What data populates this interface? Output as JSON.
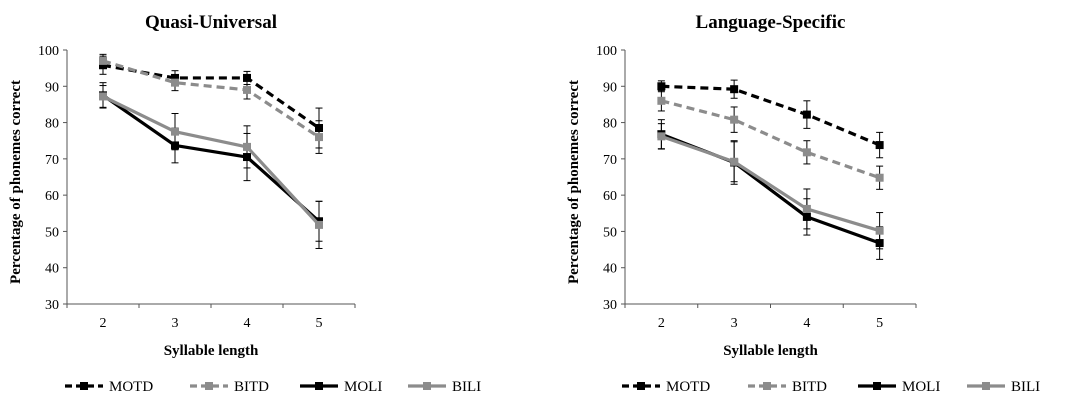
{
  "chart_data": [
    {
      "type": "line",
      "title": "Quasi-Universal",
      "xlabel": "Syllable length",
      "ylabel": "Percentage of phonemes correct",
      "categories": [
        "2",
        "3",
        "4",
        "5"
      ],
      "ylim": [
        30,
        100
      ],
      "yticks": [
        "30",
        "40",
        "50",
        "60",
        "70",
        "80",
        "90",
        "100"
      ],
      "grid": false,
      "legend": "bottom",
      "error_bars": true,
      "series": [
        {
          "name": "MOTD",
          "values": [
            95.8,
            92.3,
            92.3,
            78.5
          ],
          "errors": [
            2.5,
            2.0,
            1.8,
            5.5
          ],
          "color": "#000000",
          "dashed": true
        },
        {
          "name": "BITD",
          "values": [
            97.0,
            91.0,
            89.0,
            76.0
          ],
          "errors": [
            1.8,
            2.2,
            2.5,
            4.5
          ],
          "color": "#8c8c8c",
          "dashed": true
        },
        {
          "name": "MOLI",
          "values": [
            87.5,
            73.7,
            70.5,
            52.8
          ],
          "errors": [
            3.5,
            4.8,
            6.5,
            5.5
          ],
          "color": "#000000",
          "dashed": false
        },
        {
          "name": "BILI",
          "values": [
            87.2,
            77.5,
            73.3,
            51.8
          ],
          "errors": [
            3.0,
            5.0,
            5.8,
            6.5
          ],
          "color": "#8c8c8c",
          "dashed": false
        }
      ]
    },
    {
      "type": "line",
      "title": "Language-Specific",
      "xlabel": "Syllable length",
      "ylabel": "Percentage of phonemes correct",
      "categories": [
        "2",
        "3",
        "4",
        "5"
      ],
      "ylim": [
        30,
        100
      ],
      "yticks": [
        "30",
        "40",
        "50",
        "60",
        "70",
        "80",
        "90",
        "100"
      ],
      "grid": false,
      "legend": "bottom",
      "error_bars": true,
      "series": [
        {
          "name": "MOTD",
          "values": [
            90.0,
            89.2,
            82.2,
            73.8
          ],
          "errors": [
            1.5,
            2.5,
            3.8,
            3.5
          ],
          "color": "#000000",
          "dashed": true
        },
        {
          "name": "BITD",
          "values": [
            86.0,
            80.8,
            71.8,
            64.8
          ],
          "errors": [
            2.8,
            3.5,
            3.2,
            3.2
          ],
          "color": "#8c8c8c",
          "dashed": true
        },
        {
          "name": "MOLI",
          "values": [
            76.8,
            69.0,
            54.0,
            46.8
          ],
          "errors": [
            4.0,
            6.0,
            5.0,
            4.5
          ],
          "color": "#000000",
          "dashed": false
        },
        {
          "name": "BILI",
          "values": [
            76.2,
            69.2,
            56.2,
            50.2
          ],
          "errors": [
            3.5,
            5.5,
            5.5,
            5.0
          ],
          "color": "#8c8c8c",
          "dashed": false
        }
      ]
    }
  ]
}
